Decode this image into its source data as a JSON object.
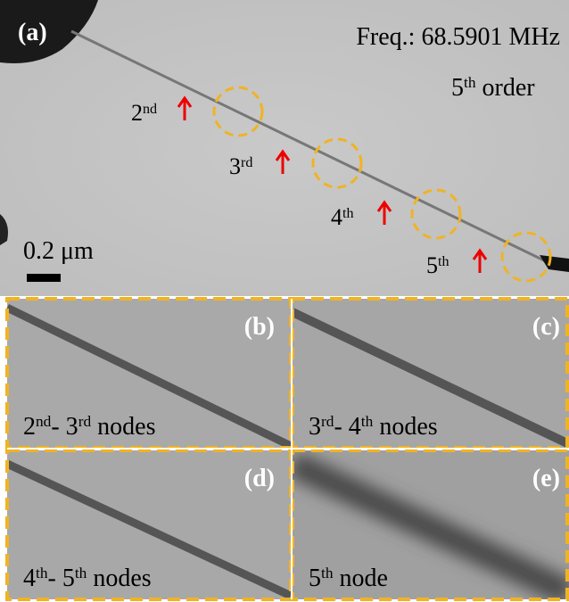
{
  "panel_a": {
    "label": "(a)",
    "frequency": "Freq.: 68.5901 MHz",
    "order": [
      {
        "text": "5"
      },
      {
        "text": "th",
        "sup": true
      },
      {
        "text": " order"
      }
    ],
    "scale_bar": "0.2 μm",
    "nodes": [
      [
        {
          "text": "2"
        },
        {
          "text": "nd",
          "sup": true
        }
      ],
      [
        {
          "text": "3"
        },
        {
          "text": "rd",
          "sup": true
        }
      ],
      [
        {
          "text": "4"
        },
        {
          "text": "th",
          "sup": true
        }
      ],
      [
        {
          "text": "5"
        },
        {
          "text": "th",
          "sup": true
        }
      ]
    ]
  },
  "insets": [
    {
      "label": "(b)",
      "caption": [
        {
          "text": "2"
        },
        {
          "text": "nd",
          "sup": true
        },
        {
          "text": "- 3"
        },
        {
          "text": "rd",
          "sup": true
        },
        {
          "text": " nodes"
        }
      ]
    },
    {
      "label": "(c)",
      "caption": [
        {
          "text": "3"
        },
        {
          "text": "rd",
          "sup": true
        },
        {
          "text": "- 4"
        },
        {
          "text": "th",
          "sup": true
        },
        {
          "text": " nodes"
        }
      ]
    },
    {
      "label": "(d)",
      "caption": [
        {
          "text": "4"
        },
        {
          "text": "th",
          "sup": true
        },
        {
          "text": "- 5"
        },
        {
          "text": "th",
          "sup": true
        },
        {
          "text": " nodes"
        }
      ]
    },
    {
      "label": "(e)",
      "caption": [
        {
          "text": "5"
        },
        {
          "text": "th",
          "sup": true
        },
        {
          "text": " node"
        }
      ]
    }
  ]
}
